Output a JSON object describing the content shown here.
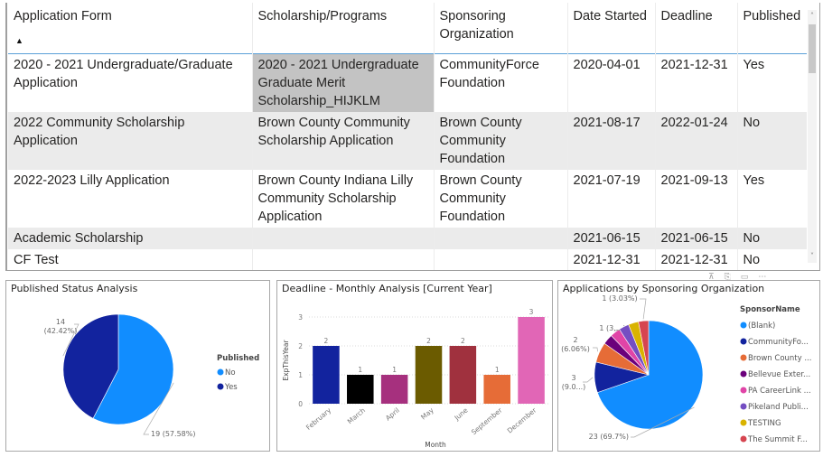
{
  "table": {
    "columns": [
      {
        "label": "Application Form",
        "sorted": "ascending"
      },
      {
        "label": "Scholarship/Programs"
      },
      {
        "label": "Sponsoring Organization"
      },
      {
        "label": "Date Started"
      },
      {
        "label": "Deadline"
      },
      {
        "label": "Published"
      }
    ],
    "sort_icon": "sort-ascending-icon",
    "rows": [
      {
        "form": "2020 - 2021 Undergraduate/Graduate Application",
        "program": "2020 - 2021 Undergraduate Graduate Merit Scholarship_HIJKLM",
        "sponsor": "CommunityForce Foundation",
        "started": "2020-04-01",
        "deadline": "2021-12-31",
        "published": "Yes",
        "selected_cell": "program"
      },
      {
        "form": "2022 Community Scholarship Application",
        "program": "Brown County Community Scholarship Application",
        "sponsor": "Brown County Community Foundation",
        "started": "2021-08-17",
        "deadline": "2022-01-24",
        "published": "No"
      },
      {
        "form": "2022-2023 Lilly Application",
        "program": "Brown County Indiana Lilly Community Scholarship Application",
        "sponsor": "Brown County Community Foundation",
        "started": "2021-07-19",
        "deadline": "2021-09-13",
        "published": "Yes"
      },
      {
        "form": "Academic Scholarship",
        "program": "",
        "sponsor": "",
        "started": "2021-06-15",
        "deadline": "2021-06-15",
        "published": "No"
      },
      {
        "form": "CF Test",
        "program": "",
        "sponsor": "",
        "started": "2021-12-31",
        "deadline": "2021-12-31",
        "published": "No"
      }
    ],
    "scroll": {
      "up_icon": "˄",
      "down_icon": "˅"
    }
  },
  "visual_header_icons": [
    "filter-icon",
    "copy-icon",
    "focus-mode-icon",
    "more-options-icon"
  ],
  "visual_header_glyphs": [
    "⊼",
    "⎘",
    "▭",
    "⋯"
  ],
  "chart_data": [
    {
      "type": "pie",
      "title": "Published Status Analysis",
      "legend_title": "Published",
      "legend_position": "right",
      "slices": [
        {
          "label": "No",
          "value": 19,
          "percent_label": "19 (57.58%)",
          "color": "#118DFF"
        },
        {
          "label": "Yes",
          "value": 14,
          "percent_label": "14\n(42.42%)",
          "color": "#12239E"
        }
      ]
    },
    {
      "type": "bar",
      "title": "Deadline - Monthly Analysis [Current Year]",
      "xlabel": "Month",
      "ylabel": "ExpThisYear",
      "ylim": [
        0,
        3
      ],
      "yticks": [
        0,
        1,
        2,
        3
      ],
      "grid": true,
      "categories": [
        "February",
        "March",
        "April",
        "May",
        "June",
        "September",
        "December"
      ],
      "values": [
        2,
        1,
        1,
        2,
        2,
        1,
        3
      ],
      "colors": [
        "#12239E",
        "#000000",
        "#A6307E",
        "#6B5B00",
        "#A0313E",
        "#E66C37",
        "#E166B6"
      ]
    },
    {
      "type": "pie",
      "title": "Applications by Sponsoring Organization",
      "legend_title": "SponsorName",
      "legend_position": "right",
      "slices": [
        {
          "label": "(Blank)",
          "value": 23,
          "percent_label": "23 (69.7%)",
          "color": "#118DFF"
        },
        {
          "label": "CommunityFo...",
          "value": 3,
          "percent_label": "3\n(9.0...)",
          "color": "#12239E"
        },
        {
          "label": "Brown County ...",
          "value": 2,
          "percent_label": "2\n(6.06%)",
          "color": "#E66C37"
        },
        {
          "label": "Bellevue Exter...",
          "value": 1,
          "percent_label": "",
          "color": "#6B007B"
        },
        {
          "label": "PA CareerLink ...",
          "value": 1,
          "percent_label": "1 (3....)",
          "color": "#E044A7"
        },
        {
          "label": "Pikeland Publi...",
          "value": 1,
          "percent_label": "",
          "color": "#744EC2"
        },
        {
          "label": "TESTING",
          "value": 1,
          "percent_label": "",
          "color": "#D9B300"
        },
        {
          "label": "The Summit F...",
          "value": 1,
          "percent_label": "1 (3.03%)",
          "color": "#D64550"
        }
      ]
    }
  ]
}
